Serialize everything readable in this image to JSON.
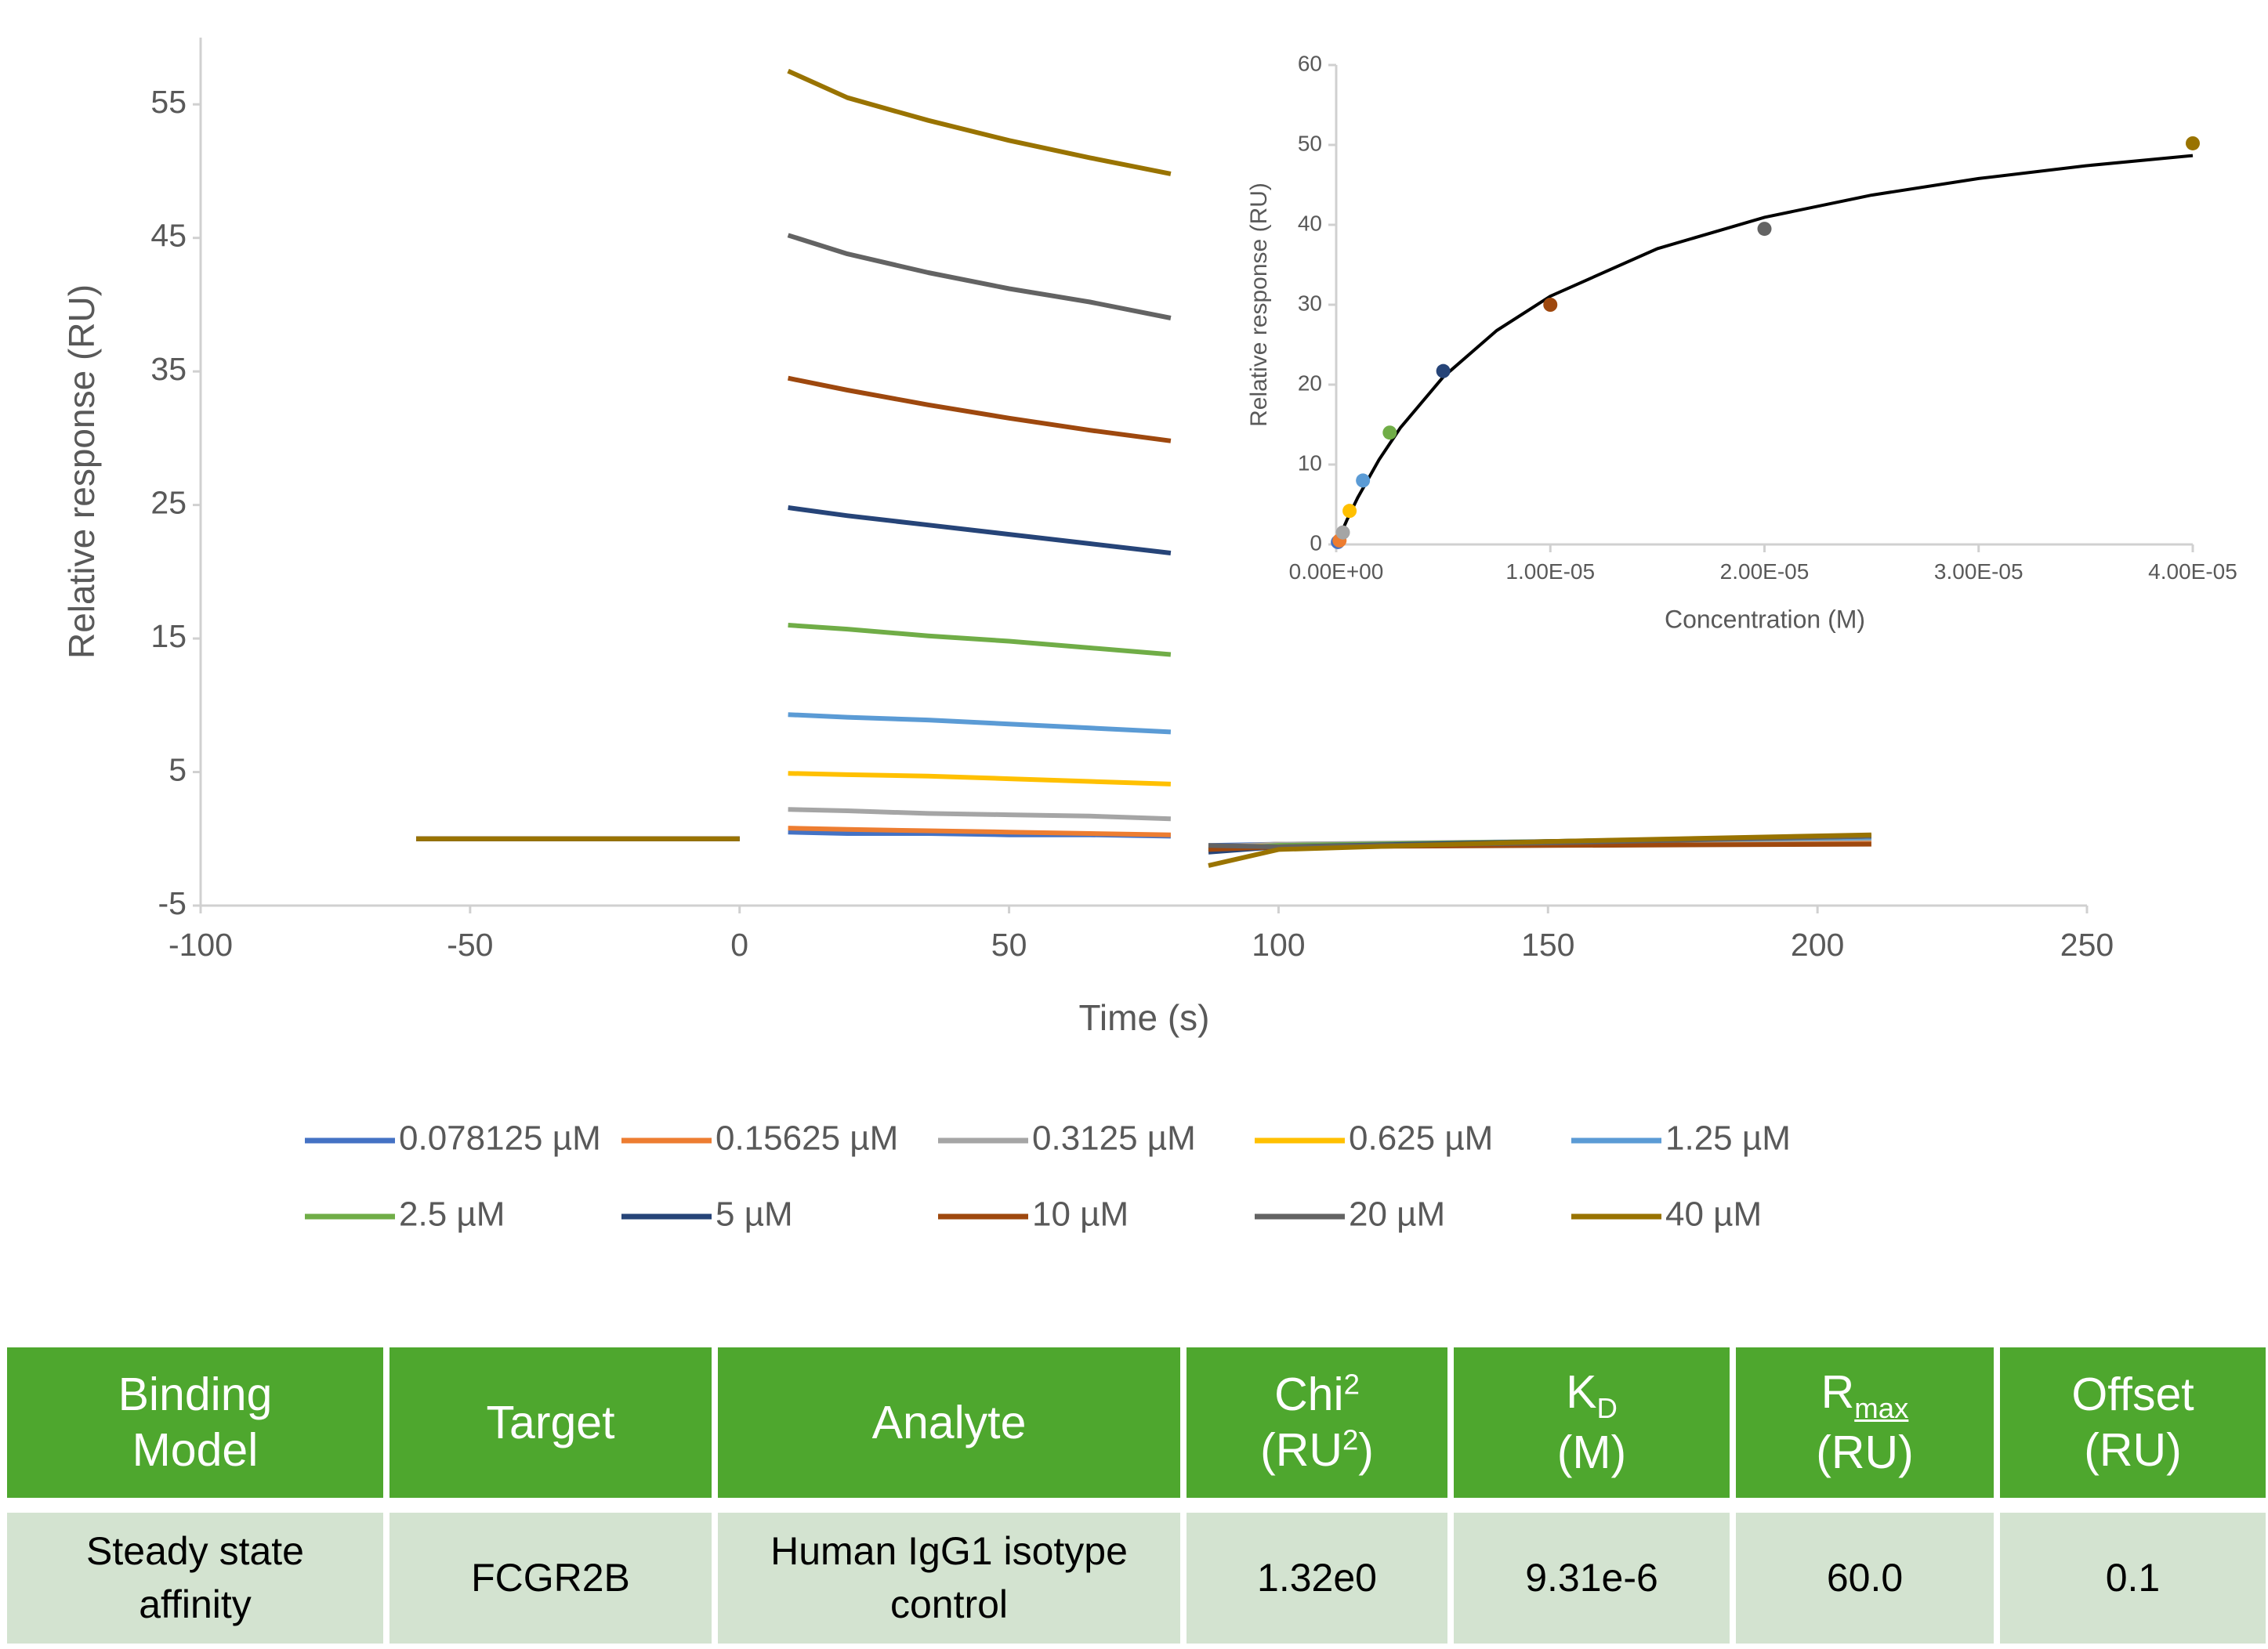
{
  "chart_data": [
    {
      "type": "line",
      "x_label": "Time (s)",
      "y_label": "Relative response (RU)",
      "xlim": [
        -100,
        250
      ],
      "xticks": [
        -100,
        -50,
        0,
        50,
        100,
        150,
        200,
        250
      ],
      "ylim": [
        -5,
        60
      ],
      "yticks": [
        -5,
        5,
        15,
        25,
        35,
        45,
        55
      ],
      "x": [
        -60,
        -30,
        0,
        5,
        9,
        20,
        35,
        50,
        65,
        80,
        84,
        87,
        100,
        150,
        210
      ],
      "series": [
        {
          "name": "0.078125 µM",
          "color": "#4472c4",
          "values": [
            0,
            0,
            0,
            null,
            0.5,
            0.4,
            0.4,
            0.3,
            0.3,
            0.2,
            null,
            -0.5,
            -0.4,
            -0.3,
            0.0
          ]
        },
        {
          "name": "0.15625 µM",
          "color": "#ed7d31",
          "values": [
            0,
            0,
            0,
            null,
            0.8,
            0.7,
            0.6,
            0.5,
            0.4,
            0.3,
            null,
            -0.6,
            -0.4,
            -0.3,
            -0.1
          ]
        },
        {
          "name": "0.3125 µM",
          "color": "#a5a5a5",
          "values": [
            0,
            0,
            0,
            null,
            2.2,
            2.1,
            1.9,
            1.8,
            1.7,
            1.5,
            null,
            -0.6,
            -0.4,
            -0.2,
            0.0
          ]
        },
        {
          "name": "0.625 µM",
          "color": "#ffc000",
          "values": [
            0,
            0,
            0,
            null,
            4.9,
            4.8,
            4.7,
            4.5,
            4.3,
            4.1,
            null,
            -0.7,
            -0.5,
            -0.2,
            0.1
          ]
        },
        {
          "name": "1.25 µM",
          "color": "#5b9bd5",
          "values": [
            0,
            0,
            0,
            null,
            9.3,
            9.1,
            8.9,
            8.6,
            8.3,
            8.0,
            null,
            -0.8,
            -0.5,
            -0.2,
            0.1
          ]
        },
        {
          "name": "2.5 µM",
          "color": "#70ad47",
          "values": [
            0,
            0,
            0,
            null,
            16.0,
            15.7,
            15.2,
            14.8,
            14.3,
            13.8,
            null,
            -0.9,
            -0.5,
            -0.2,
            0.2
          ]
        },
        {
          "name": "5 µM",
          "color": "#264478",
          "values": [
            0,
            0,
            0,
            null,
            24.8,
            24.2,
            23.5,
            22.8,
            22.1,
            21.4,
            null,
            -1.0,
            -0.6,
            -0.2,
            0.2
          ]
        },
        {
          "name": "10 µM",
          "color": "#9e480e",
          "values": [
            0,
            0,
            0,
            null,
            34.5,
            33.6,
            32.5,
            31.5,
            30.6,
            29.8,
            null,
            -0.8,
            -0.6,
            -0.5,
            -0.4
          ]
        },
        {
          "name": "20 µM",
          "color": "#636363",
          "values": [
            0,
            0,
            0,
            null,
            45.2,
            43.8,
            42.4,
            41.2,
            40.2,
            39.0,
            null,
            -0.5,
            -0.6,
            -0.3,
            0.2
          ]
        },
        {
          "name": "40 µM",
          "color": "#997300",
          "values": [
            0,
            0,
            0,
            null,
            57.5,
            55.5,
            53.8,
            52.3,
            51.0,
            49.8,
            null,
            -2.0,
            -0.8,
            -0.2,
            0.3
          ]
        }
      ]
    },
    {
      "type": "scatter",
      "x_label": "Concentration (M)",
      "y_label": "Relative response (RU)",
      "xlim": [
        0,
        4e-05
      ],
      "xticks": [
        {
          "value": 0,
          "label": "0.00E+00"
        },
        {
          "value": 1e-05,
          "label": "1.00E-05"
        },
        {
          "value": 2e-05,
          "label": "2.00E-05"
        },
        {
          "value": 3e-05,
          "label": "3.00E-05"
        },
        {
          "value": 4e-05,
          "label": "4.00E-05"
        }
      ],
      "ylim": [
        0,
        60
      ],
      "yticks": [
        0,
        10,
        20,
        30,
        40,
        50,
        60
      ],
      "x": [
        7.8125e-08,
        1.5625e-07,
        3.125e-07,
        6.25e-07,
        1.25e-06,
        2.5e-06,
        5e-06,
        1e-05,
        2e-05,
        4e-05
      ],
      "values": [
        0.3,
        0.5,
        1.5,
        4.2,
        8.0,
        14.0,
        21.7,
        30.0,
        39.5,
        50.2
      ],
      "colors": [
        "#4472c4",
        "#ed7d31",
        "#a5a5a5",
        "#ffc000",
        "#5b9bd5",
        "#70ad47",
        "#264478",
        "#9e480e",
        "#636363",
        "#997300"
      ],
      "fit": {
        "color": "#000000",
        "x": [
          0,
          5e-07,
          1e-06,
          2e-06,
          3e-06,
          5e-06,
          7.5e-06,
          1e-05,
          1.5e-05,
          2e-05,
          2.5e-05,
          3e-05,
          3.5e-05,
          4e-05
        ],
        "values": [
          0,
          3.06,
          5.82,
          10.61,
          14.62,
          20.96,
          26.77,
          31.07,
          37.02,
          40.94,
          43.72,
          45.79,
          47.39,
          48.67
        ]
      }
    }
  ],
  "table": {
    "header": [
      [
        "Binding Model"
      ],
      [
        "Target"
      ],
      [
        "Analyte"
      ],
      [
        "Chi",
        "2",
        "(RU",
        "2",
        ")"
      ],
      [
        "K",
        "D",
        "(M)"
      ],
      [
        "R",
        "max",
        "(RU)"
      ],
      [
        "Offset",
        "(RU)"
      ]
    ],
    "rows": [
      [
        "Steady state affinity",
        "FCGR2B",
        "Human IgG1 isotype control",
        "1.32e0",
        "9.31e-6",
        "60.0",
        "0.1"
      ]
    ]
  }
}
